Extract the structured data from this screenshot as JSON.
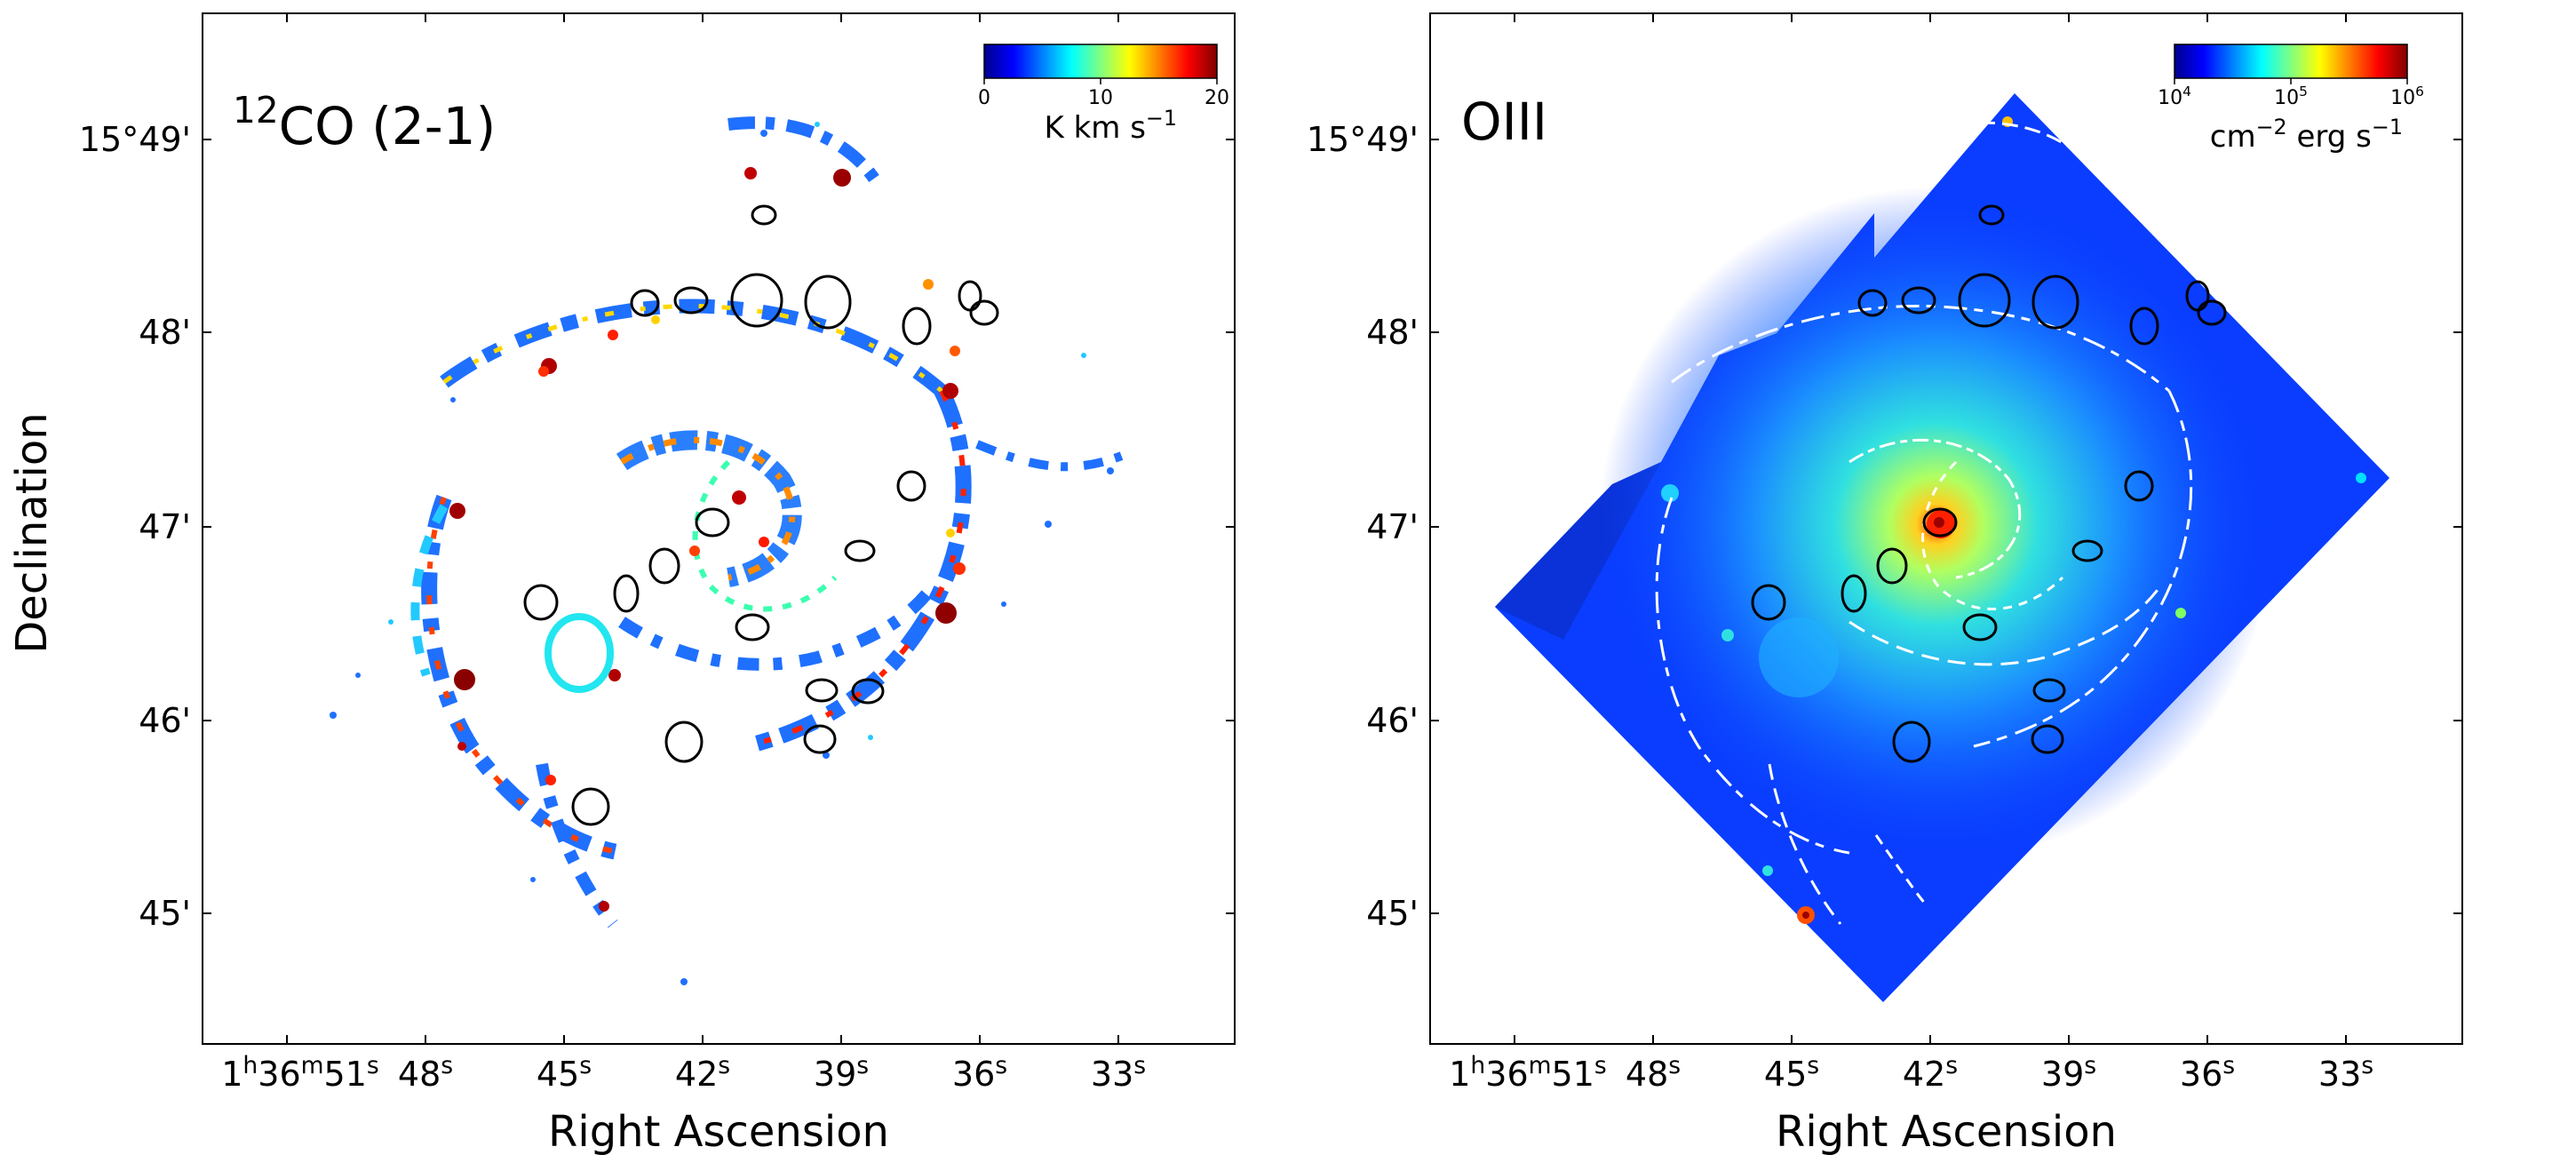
{
  "figure": {
    "ylabel": "Declination",
    "xlabel": "Right Ascension",
    "dec_ticks": [
      "15°49'",
      "48'",
      "47'",
      "46'",
      "45'"
    ],
    "ra_ticks": [
      {
        "main": "1",
        "s1": "h",
        "mid": "36",
        "s2": "m",
        "val": "51",
        "s3": "s"
      },
      {
        "val": "48",
        "s3": "s"
      },
      {
        "val": "45",
        "s3": "s"
      },
      {
        "val": "42",
        "s3": "s"
      },
      {
        "val": "39",
        "s3": "s"
      },
      {
        "val": "36",
        "s3": "s"
      },
      {
        "val": "33",
        "s3": "s"
      }
    ]
  },
  "panels": [
    {
      "id": "co",
      "title_sup": "12",
      "title": "CO (2-1)",
      "colorbar": {
        "ticks": [
          "0",
          "10",
          "20"
        ],
        "label": "K km s",
        "label_sup": "−1"
      }
    },
    {
      "id": "oiii",
      "title": "OIII",
      "colorbar": {
        "ticks": [
          {
            "base": "10",
            "exp": "4"
          },
          {
            "base": "10",
            "exp": "5"
          },
          {
            "base": "10",
            "exp": "6"
          }
        ],
        "label_a": "cm",
        "label_a_sup": "−2",
        "label_b": " erg s",
        "label_b_sup": "−1"
      }
    }
  ],
  "colors": {
    "cmap": [
      "#00008f",
      "#0000ff",
      "#0080ff",
      "#00ffff",
      "#80ff80",
      "#ffff00",
      "#ff8000",
      "#ff0000",
      "#800000"
    ],
    "region_outline": "#000000",
    "highlight_region": "#22e6f0",
    "contour": "#ffffff",
    "oiii_background": "#0a3dff"
  }
}
